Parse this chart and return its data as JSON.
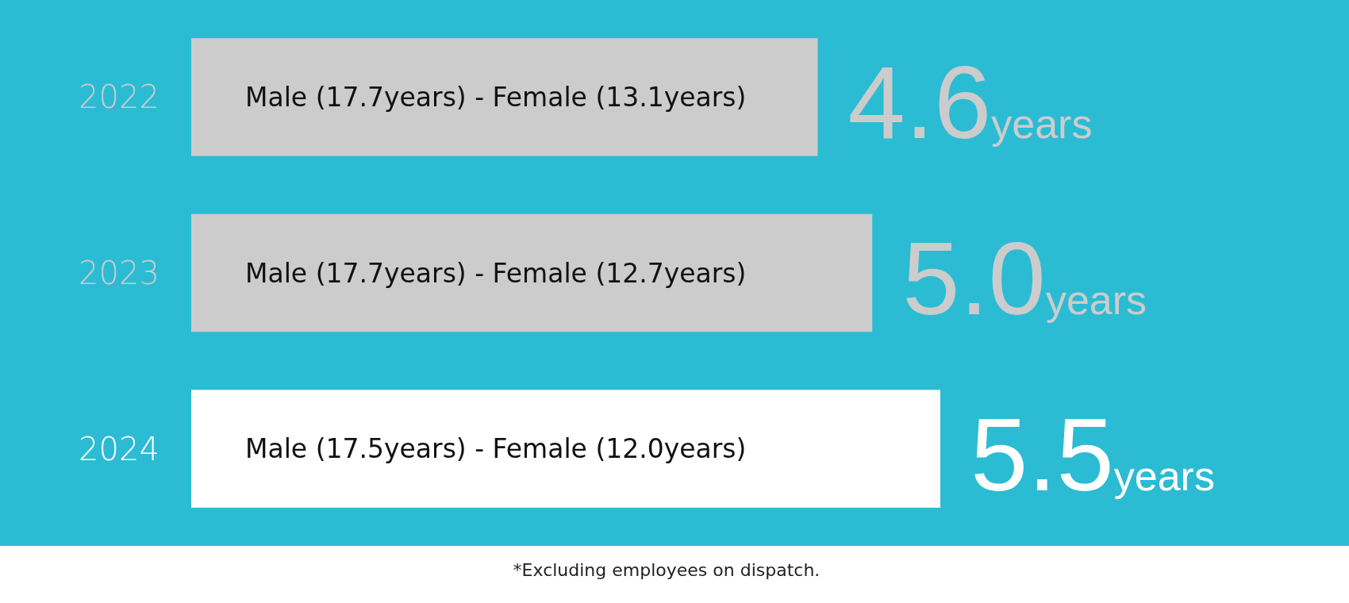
{
  "chart_data": {
    "type": "bar",
    "orientation": "horizontal",
    "categories": [
      "2022",
      "2023",
      "2024"
    ],
    "values": [
      4.6,
      5.0,
      5.5
    ],
    "colors": [
      "#cccccc",
      "#cccccc",
      "#ffffff"
    ],
    "value_labels": [
      "4.6years",
      "5.0years",
      "5.5years"
    ],
    "annotations": [
      "Male (17.7years) - Female (13.1years)",
      "Male (17.7years) - Female (12.7years)",
      "Male (17.5years) - Female (12.0years)",
      "*Excluding employees on dispatch."
    ]
  }
}
